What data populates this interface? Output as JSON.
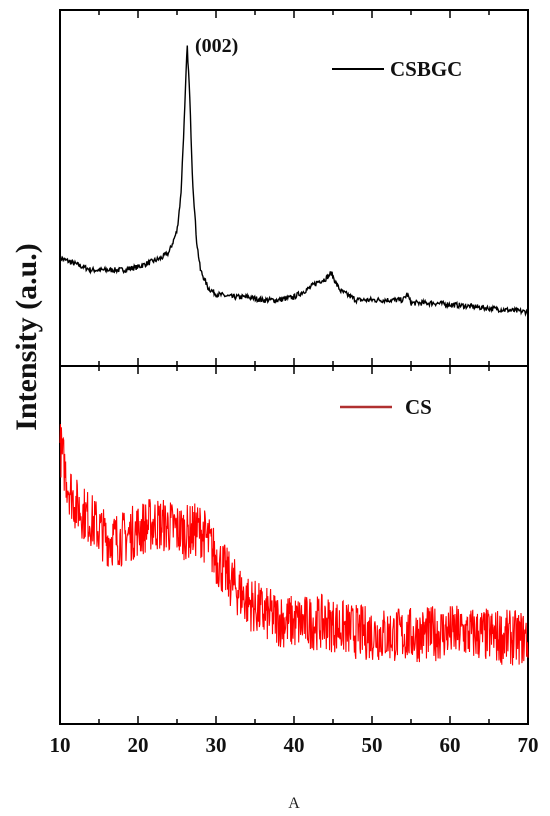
{
  "chart_data": {
    "type": "line",
    "ylabel": "Intensity (a.u.)",
    "xlabel": "A",
    "xlim": [
      10,
      70
    ],
    "x_ticks": [
      "10",
      "20",
      "30",
      "40",
      "50",
      "60",
      "70"
    ],
    "grid": false,
    "panels": [
      {
        "id": "top",
        "legend_position": "top-right",
        "annotation": {
          "text": "(002)",
          "x": 26.5
        },
        "ylim": [
          0,
          100
        ],
        "series": [
          {
            "name": "CSBGC",
            "color": "#000000",
            "x": [
              10,
              12,
              14,
              16,
              18,
              20,
              22,
              23,
              24,
              25,
              25.5,
              26,
              26.3,
              26.6,
              27,
              27.5,
              28,
              29,
              30,
              32,
              34,
              36,
              38,
              40,
              42,
              43,
              44,
              44.8,
              45.5,
              46,
              48,
              50,
              52,
              54,
              54.5,
              55,
              58,
              62,
              66,
              70
            ],
            "y": [
              24,
              22,
              20,
              20,
              20,
              21,
              23,
              24,
              26,
              33,
              45,
              74,
              95,
              80,
              50,
              30,
              20,
              14,
              12,
              11,
              11,
              10,
              10,
              11,
              14,
              16,
              17,
              19,
              15,
              13,
              10,
              10,
              10,
              10,
              12,
              9,
              9,
              8,
              7,
              6
            ]
          }
        ]
      },
      {
        "id": "bottom",
        "legend_position": "top-center",
        "ylim": [
          0,
          100
        ],
        "series": [
          {
            "name": "CS",
            "color": "#ff0000",
            "x": [
              10,
              11,
              12,
              14,
              16,
              18,
              20,
              22,
              24,
              26,
              28,
              29,
              30,
              32,
              34,
              36,
              38,
              40,
              44,
              48,
              52,
              56,
              60,
              64,
              68,
              70
            ],
            "y": [
              82,
              70,
              63,
              58,
              52,
              52,
              55,
              57,
              56,
              54,
              55,
              51,
              46,
              38,
              32,
              28,
              26,
              25,
              25,
              22,
              21,
              21,
              22,
              21,
              20,
              20
            ]
          }
        ]
      }
    ]
  }
}
